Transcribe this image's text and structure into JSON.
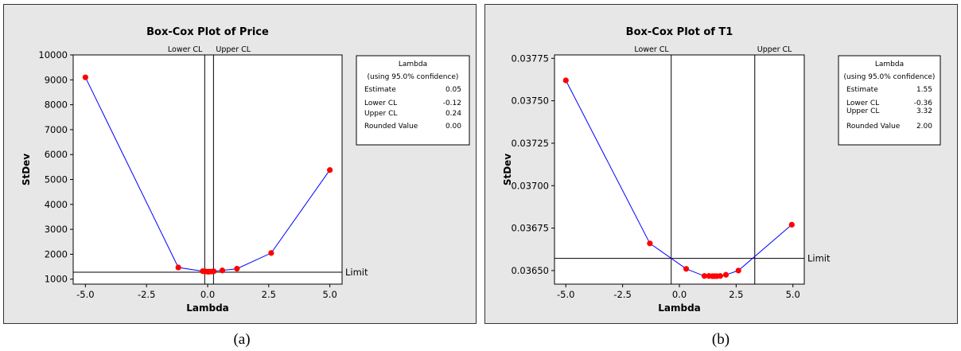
{
  "captions": [
    "(a)",
    "(b)"
  ],
  "colors": {
    "series": "#0000ff",
    "point": "#ff0000",
    "panel_bg": "#e7e7e7",
    "plot_bg": "#ffffff"
  },
  "chart_data": [
    {
      "type": "line",
      "title": "Box-Cox Plot of Price",
      "xlabel": "Lambda",
      "ylabel": "StDev",
      "xlim": [
        -5.5,
        5.5
      ],
      "ylim": [
        800,
        10000
      ],
      "xticks": [
        -5.0,
        -2.5,
        0.0,
        2.5,
        5.0
      ],
      "xtick_labels": [
        "-5.0",
        "-2.5",
        "0.0",
        "2.5",
        "5.0"
      ],
      "yticks": [
        1000,
        2000,
        3000,
        4000,
        5000,
        6000,
        7000,
        8000,
        9000,
        10000
      ],
      "ytick_labels": [
        "1000",
        "2000",
        "3000",
        "4000",
        "5000",
        "6000",
        "7000",
        "8000",
        "9000",
        "10000"
      ],
      "series": [
        {
          "x": [
            -5.0,
            -1.2,
            -0.2,
            -0.1,
            0.0,
            0.05,
            0.15,
            0.25,
            0.6,
            1.2,
            2.6,
            5.0
          ],
          "values": [
            9100,
            1470,
            1320,
            1310,
            1300,
            1300,
            1305,
            1315,
            1350,
            1420,
            2050,
            5380
          ]
        }
      ],
      "limit": {
        "y": 1280,
        "label": "Limit"
      },
      "cl_lines": {
        "lower_x": -0.12,
        "upper_x": 0.24,
        "lower_label": "Lower CL",
        "upper_label": "Upper CL"
      },
      "legend": {
        "title": "Lambda",
        "subtitle": "(using 95.0% confidence)",
        "rows": [
          {
            "label": "Estimate",
            "value": "0.05"
          },
          {
            "label": "Lower CL",
            "value": "-0.12"
          },
          {
            "label": "Upper CL",
            "value": "0.24"
          },
          {
            "label": "Rounded Value",
            "value": "0.00"
          }
        ]
      }
    },
    {
      "type": "line",
      "title": "Box-Cox Plot of T1",
      "xlabel": "Lambda",
      "ylabel": "StDev",
      "xlim": [
        -5.5,
        5.5
      ],
      "ylim": [
        0.03642,
        0.03777
      ],
      "xticks": [
        -5.0,
        -2.5,
        0.0,
        2.5,
        5.0
      ],
      "xtick_labels": [
        "-5.0",
        "-2.5",
        "0.0",
        "2.5",
        "5.0"
      ],
      "yticks": [
        0.0365,
        0.03675,
        0.037,
        0.03725,
        0.0375,
        0.03775
      ],
      "ytick_labels": [
        "0.03650",
        "0.03675",
        "0.03700",
        "0.03725",
        "0.03750",
        "0.03775"
      ],
      "series": [
        {
          "x": [
            -5.0,
            -1.3,
            0.3,
            1.1,
            1.3,
            1.45,
            1.55,
            1.65,
            1.8,
            2.05,
            2.6,
            4.95
          ],
          "values": [
            0.03762,
            0.03666,
            0.03651,
            0.036468,
            0.036468,
            0.036467,
            0.036467,
            0.036467,
            0.036468,
            0.036475,
            0.0365,
            0.03677
          ]
        }
      ],
      "limit": {
        "y": 0.036572,
        "label": "Limit"
      },
      "cl_lines": {
        "lower_x": -0.36,
        "upper_x": 3.32,
        "lower_label": "Lower CL",
        "upper_label": "Upper CL"
      },
      "legend": {
        "title": "Lambda",
        "subtitle": "(using 95.0% confidence)",
        "rows": [
          {
            "label": "Estimate",
            "value": "1.55"
          },
          {
            "label": "Lower CL",
            "value": "-0.36"
          },
          {
            "label": "Upper CL",
            "value": "3.32"
          },
          {
            "label": "Rounded Value",
            "value": "2.00"
          }
        ]
      }
    }
  ]
}
